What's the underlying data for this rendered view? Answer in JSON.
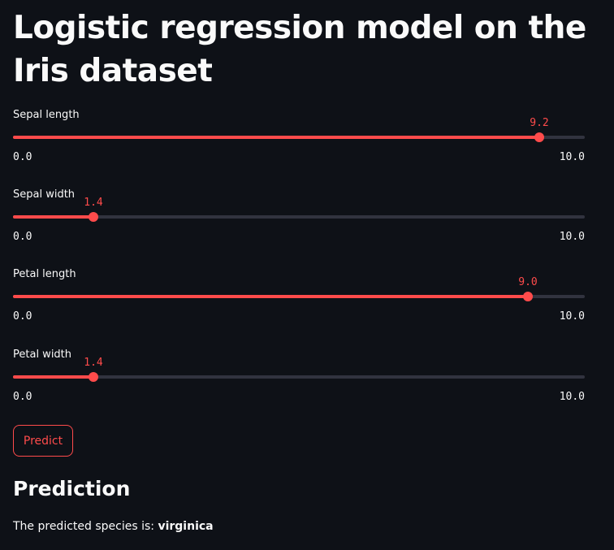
{
  "title": "Logistic regression model on the Iris dataset",
  "sliders": [
    {
      "label": "Sepal length",
      "value": 9.2,
      "value_text": "9.2",
      "min": 0,
      "max": 10,
      "min_text": "0.0",
      "max_text": "10.0"
    },
    {
      "label": "Sepal width",
      "value": 1.4,
      "value_text": "1.4",
      "min": 0,
      "max": 10,
      "min_text": "0.0",
      "max_text": "10.0"
    },
    {
      "label": "Petal length",
      "value": 9.0,
      "value_text": "9.0",
      "min": 0,
      "max": 10,
      "min_text": "0.0",
      "max_text": "10.0"
    },
    {
      "label": "Petal width",
      "value": 1.4,
      "value_text": "1.4",
      "min": 0,
      "max": 10,
      "min_text": "0.0",
      "max_text": "10.0"
    }
  ],
  "predict_button": {
    "label": "Predict"
  },
  "prediction": {
    "heading": "Prediction",
    "prefix": "The predicted species is: ",
    "species": "virginica"
  },
  "colors": {
    "background": "#0e1117",
    "text": "#fafafa",
    "accent": "#ff4b4b",
    "track": "#31333f"
  }
}
